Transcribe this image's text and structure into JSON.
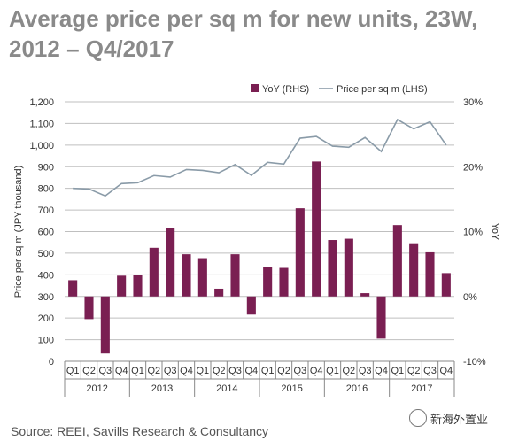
{
  "title_line1": "Average price per sq m for new units, 23W,",
  "title_line2": "2012 – Q4/2017",
  "source": "Source: REEI, Savills Research & Consultancy",
  "watermark": "新海外置业",
  "colors": {
    "bar": "#7a1f52",
    "line": "#8a9ba8",
    "grid": "#bfbfbf",
    "text": "#333333"
  },
  "chart_data": {
    "type": "bar+line",
    "legend_position": "top-right",
    "grid": true,
    "y_left": {
      "label": "Price per sq m (JPY thousand)",
      "range": [
        0,
        1200
      ],
      "ticks": [
        0,
        100,
        200,
        300,
        400,
        500,
        600,
        700,
        800,
        900,
        1000,
        1100,
        1200
      ]
    },
    "y_right": {
      "label": "YoY",
      "range": [
        -10,
        30
      ],
      "ticks": [
        -10,
        0,
        10,
        20,
        30
      ],
      "tick_labels": [
        "-10%",
        "0%",
        "10%",
        "20%",
        "30%"
      ]
    },
    "quarters": [
      "Q1",
      "Q2",
      "Q3",
      "Q4",
      "Q1",
      "Q2",
      "Q3",
      "Q4",
      "Q1",
      "Q2",
      "Q3",
      "Q4",
      "Q1",
      "Q2",
      "Q3",
      "Q4",
      "Q1",
      "Q2",
      "Q3",
      "Q4",
      "Q1",
      "Q2",
      "Q3",
      "Q4"
    ],
    "years": [
      "2012",
      "2013",
      "2014",
      "2015",
      "2016",
      "2017"
    ],
    "series": [
      {
        "name": "YoY (RHS)",
        "type": "bar",
        "axis": "right",
        "values": [
          2.5,
          -3.5,
          -8.8,
          3.2,
          3.3,
          7.5,
          10.5,
          6.5,
          5.9,
          1.2,
          6.5,
          -2.8,
          4.5,
          4.4,
          13.6,
          20.8,
          8.7,
          8.9,
          0.5,
          -6.5,
          11.0,
          8.2,
          6.8,
          3.6
        ]
      },
      {
        "name": "Price per sq m (LHS)",
        "type": "line",
        "axis": "left",
        "values": [
          800,
          797,
          765,
          822,
          826,
          859,
          852,
          887,
          883,
          872,
          910,
          860,
          920,
          912,
          1032,
          1040,
          995,
          990,
          1035,
          970,
          1118,
          1075,
          1108,
          1000
        ]
      }
    ]
  }
}
